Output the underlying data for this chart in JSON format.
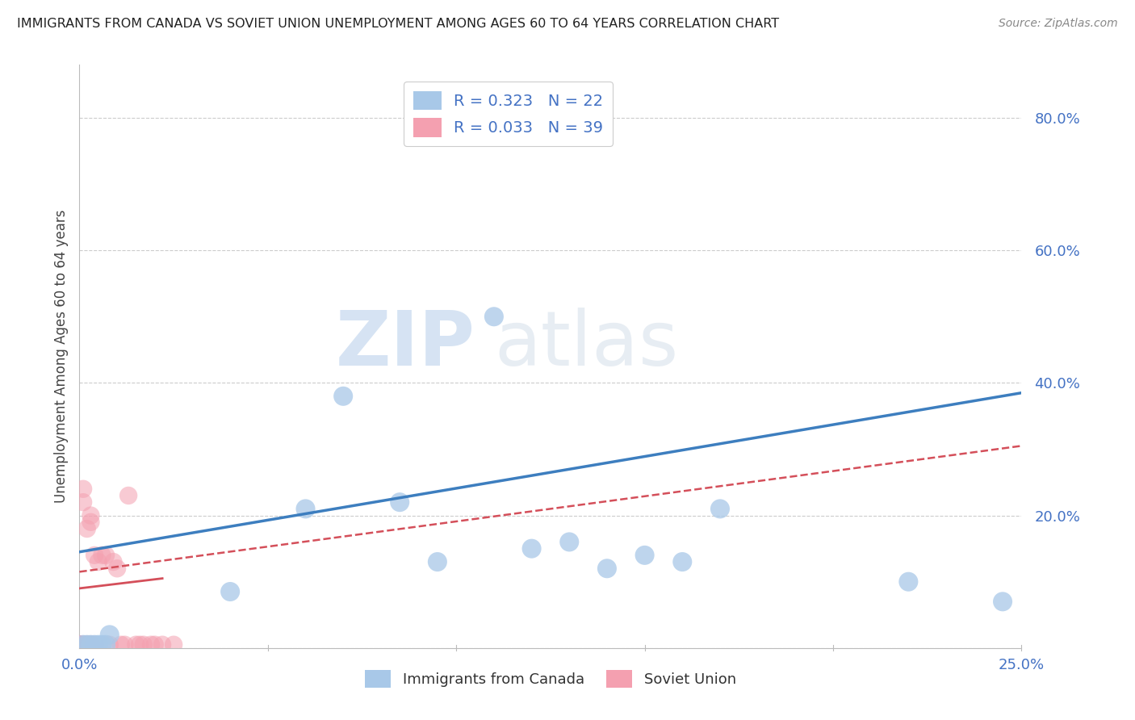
{
  "title": "IMMIGRANTS FROM CANADA VS SOVIET UNION UNEMPLOYMENT AMONG AGES 60 TO 64 YEARS CORRELATION CHART",
  "source": "Source: ZipAtlas.com",
  "ylabel": "Unemployment Among Ages 60 to 64 years",
  "canada_label": "Immigrants from Canada",
  "soviet_label": "Soviet Union",
  "canada_R": 0.323,
  "canada_N": 22,
  "soviet_R": 0.033,
  "soviet_N": 39,
  "canada_color": "#a8c8e8",
  "soviet_color": "#f4a0b0",
  "canada_line_color": "#3d7ebf",
  "soviet_line_color": "#d44f5a",
  "xlim": [
    0.0,
    0.25
  ],
  "ylim": [
    0.0,
    0.88
  ],
  "xticks": [
    0.0,
    0.05,
    0.1,
    0.15,
    0.2,
    0.25
  ],
  "xtick_labels": [
    "0.0%",
    "",
    "",
    "",
    "",
    "25.0%"
  ],
  "ytick_positions": [
    0.0,
    0.2,
    0.4,
    0.6,
    0.8
  ],
  "ytick_labels": [
    "",
    "20.0%",
    "40.0%",
    "60.0%",
    "80.0%"
  ],
  "canada_x": [
    0.001,
    0.002,
    0.003,
    0.004,
    0.005,
    0.006,
    0.007,
    0.008,
    0.04,
    0.06,
    0.07,
    0.085,
    0.095,
    0.11,
    0.12,
    0.13,
    0.14,
    0.15,
    0.16,
    0.17,
    0.22,
    0.245
  ],
  "canada_y": [
    0.005,
    0.005,
    0.005,
    0.005,
    0.005,
    0.005,
    0.005,
    0.02,
    0.085,
    0.21,
    0.38,
    0.22,
    0.13,
    0.5,
    0.15,
    0.16,
    0.12,
    0.14,
    0.13,
    0.21,
    0.1,
    0.07
  ],
  "soviet_x": [
    0.0,
    0.0,
    0.0,
    0.0,
    0.0,
    0.0,
    0.0,
    0.0,
    0.001,
    0.001,
    0.001,
    0.001,
    0.001,
    0.002,
    0.002,
    0.002,
    0.002,
    0.003,
    0.003,
    0.003,
    0.003,
    0.004,
    0.004,
    0.005,
    0.006,
    0.007,
    0.008,
    0.009,
    0.01,
    0.011,
    0.012,
    0.013,
    0.015,
    0.016,
    0.017,
    0.019,
    0.02,
    0.022,
    0.025
  ],
  "soviet_y": [
    0.005,
    0.005,
    0.005,
    0.005,
    0.005,
    0.005,
    0.005,
    0.005,
    0.005,
    0.005,
    0.005,
    0.22,
    0.24,
    0.005,
    0.005,
    0.005,
    0.18,
    0.005,
    0.005,
    0.19,
    0.2,
    0.005,
    0.14,
    0.13,
    0.14,
    0.14,
    0.005,
    0.13,
    0.12,
    0.005,
    0.005,
    0.23,
    0.005,
    0.005,
    0.005,
    0.005,
    0.005,
    0.005,
    0.005
  ],
  "canada_line_x0": 0.0,
  "canada_line_y0": 0.145,
  "canada_line_x1": 0.25,
  "canada_line_y1": 0.385,
  "soviet_line_x0": 0.0,
  "soviet_line_y0": 0.115,
  "soviet_line_x1": 0.25,
  "soviet_line_y1": 0.305,
  "watermark_zip": "ZIP",
  "watermark_atlas": "atlas",
  "background_color": "#ffffff",
  "grid_color": "#cccccc",
  "axis_color": "#4472c4"
}
